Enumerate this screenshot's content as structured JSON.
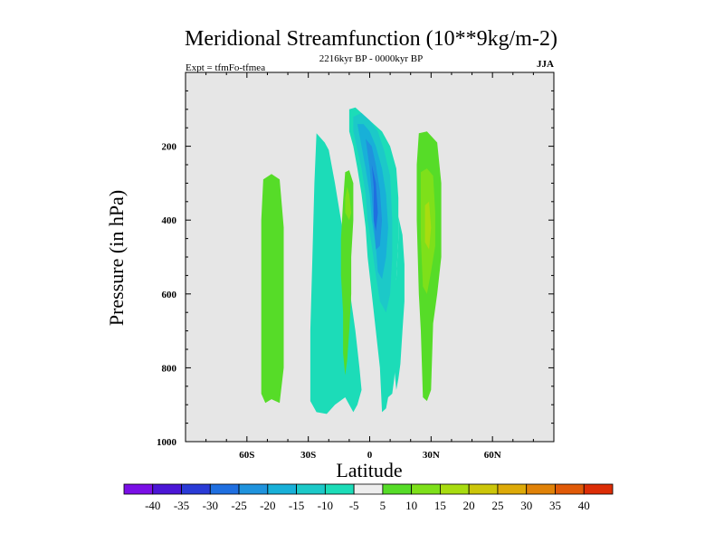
{
  "chart_data": {
    "type": "contour",
    "title": "Meridional Streamfunction (10**9kg/m-2)",
    "subtitle_left": "Expt = tfmFo-tfmea",
    "subtitle_center": "2216kyr BP - 0000kyr BP",
    "subtitle_right": "JJA",
    "xlabel": "Latitude",
    "ylabel": "Pressure (in hPa)",
    "xlim": [
      -90,
      90
    ],
    "ylim": [
      1000,
      0
    ],
    "x_ticks": [
      {
        "value": -60,
        "label": "60S"
      },
      {
        "value": -30,
        "label": "30S"
      },
      {
        "value": 0,
        "label": "0"
      },
      {
        "value": 30,
        "label": "30N"
      },
      {
        "value": 60,
        "label": "60N"
      }
    ],
    "y_ticks": [
      {
        "value": 200,
        "label": "200"
      },
      {
        "value": 400,
        "label": "400"
      },
      {
        "value": 600,
        "label": "600"
      },
      {
        "value": 800,
        "label": "800"
      },
      {
        "value": 1000,
        "label": "1000"
      }
    ],
    "background_color": "#e6e6e6",
    "levels": [
      -40,
      -35,
      -30,
      -25,
      -20,
      -15,
      -10,
      -5,
      5,
      10,
      15,
      20,
      25,
      30,
      35,
      40
    ],
    "level_labels": [
      "-40",
      "-35",
      "-30",
      "-25",
      "-20",
      "-15",
      "-10",
      "-5",
      "5",
      "10",
      "15",
      "20",
      "25",
      "30",
      "35",
      "40"
    ],
    "colors": [
      "#7a0fe6",
      "#4b16d6",
      "#2a3bd6",
      "#1f6fe0",
      "#1f93dd",
      "#18b0d8",
      "#1cc9c8",
      "#1cdcb8",
      "#eeeeee",
      "#56dc28",
      "#7ee01a",
      "#a8dc10",
      "#ccc60a",
      "#ddaa08",
      "#e08208",
      "#e05a08",
      "#dc2d06"
    ],
    "regions": [
      {
        "label": "band-60S-positive",
        "value": 7.5,
        "outline": [
          [
            -52,
            290
          ],
          [
            -48,
            275
          ],
          [
            -44,
            290
          ],
          [
            -42,
            420
          ],
          [
            -42,
            600
          ],
          [
            -42,
            800
          ],
          [
            -44,
            895
          ],
          [
            -48,
            885
          ],
          [
            -51,
            895
          ],
          [
            -53,
            870
          ],
          [
            -53,
            600
          ],
          [
            -53,
            400
          ]
        ]
      },
      {
        "value": -7.5,
        "outline": [
          [
            -26,
            165
          ],
          [
            -22,
            190
          ],
          [
            -20,
            210
          ],
          [
            -17,
            300
          ],
          [
            -14,
            400
          ],
          [
            -11,
            500
          ],
          [
            -9,
            620
          ],
          [
            -7,
            700
          ],
          [
            -5,
            800
          ],
          [
            -4,
            860
          ],
          [
            -6,
            900
          ],
          [
            -8,
            920
          ],
          [
            -12,
            880
          ],
          [
            -17,
            900
          ],
          [
            -21,
            925
          ],
          [
            -26,
            920
          ],
          [
            -29,
            890
          ],
          [
            -29,
            700
          ],
          [
            -28,
            500
          ],
          [
            -27,
            300
          ]
        ]
      },
      {
        "value": -7.5,
        "outline": [
          [
            -10,
            100
          ],
          [
            -7,
            95
          ],
          [
            -3,
            115
          ],
          [
            2,
            140
          ],
          [
            6,
            160
          ],
          [
            10,
            200
          ],
          [
            13,
            260
          ],
          [
            14,
            340
          ],
          [
            14,
            450
          ],
          [
            13,
            560
          ],
          [
            14,
            640
          ],
          [
            13,
            760
          ],
          [
            12,
            830
          ],
          [
            11,
            870
          ],
          [
            9,
            880
          ],
          [
            8,
            910
          ],
          [
            6,
            920
          ],
          [
            5,
            800
          ],
          [
            3,
            700
          ],
          [
            1,
            600
          ],
          [
            -1,
            500
          ],
          [
            -2,
            420
          ],
          [
            -4,
            330
          ],
          [
            -6,
            260
          ],
          [
            -8,
            200
          ],
          [
            -10,
            160
          ]
        ]
      },
      {
        "value": -7.5,
        "outline": [
          [
            14,
            390
          ],
          [
            16,
            440
          ],
          [
            17,
            520
          ],
          [
            17,
            620
          ],
          [
            16,
            700
          ],
          [
            15,
            790
          ],
          [
            14,
            830
          ],
          [
            13,
            860
          ],
          [
            12,
            800
          ],
          [
            13,
            700
          ],
          [
            13,
            560
          ],
          [
            14,
            450
          ]
        ]
      },
      {
        "value": -12.5,
        "outline": [
          [
            -8,
            120
          ],
          [
            -4,
            110
          ],
          [
            0,
            130
          ],
          [
            4,
            160
          ],
          [
            7,
            210
          ],
          [
            10,
            280
          ],
          [
            11,
            400
          ],
          [
            11,
            500
          ],
          [
            10,
            600
          ],
          [
            8,
            650
          ],
          [
            5,
            620
          ],
          [
            3,
            550
          ],
          [
            1,
            470
          ],
          [
            -1,
            400
          ],
          [
            -2,
            330
          ],
          [
            -4,
            260
          ],
          [
            -6,
            210
          ],
          [
            -8,
            160
          ]
        ]
      },
      {
        "value": -17.5,
        "outline": [
          [
            -6,
            140
          ],
          [
            -3,
            140
          ],
          [
            0,
            160
          ],
          [
            3,
            200
          ],
          [
            6,
            260
          ],
          [
            8,
            330
          ],
          [
            9,
            420
          ],
          [
            8,
            500
          ],
          [
            6,
            560
          ],
          [
            4,
            540
          ],
          [
            3,
            470
          ],
          [
            1,
            400
          ],
          [
            0,
            330
          ],
          [
            -2,
            260
          ],
          [
            -4,
            200
          ]
        ]
      },
      {
        "value": -22.5,
        "outline": [
          [
            -2,
            180
          ],
          [
            1,
            200
          ],
          [
            3,
            250
          ],
          [
            5,
            320
          ],
          [
            6,
            400
          ],
          [
            5,
            470
          ],
          [
            3,
            480
          ],
          [
            2,
            410
          ],
          [
            1,
            330
          ],
          [
            0,
            260
          ]
        ]
      },
      {
        "value": -27.5,
        "outline": [
          [
            1,
            250
          ],
          [
            3,
            300
          ],
          [
            4,
            380
          ],
          [
            3,
            430
          ],
          [
            2,
            400
          ],
          [
            2,
            310
          ]
        ]
      },
      {
        "value": 7.5,
        "outline": [
          [
            -12,
            270
          ],
          [
            -10,
            265
          ],
          [
            -8,
            300
          ],
          [
            -8,
            400
          ],
          [
            -9,
            500
          ],
          [
            -9,
            600
          ],
          [
            -10,
            700
          ],
          [
            -11,
            780
          ],
          [
            -12,
            820
          ],
          [
            -13,
            760
          ],
          [
            -13,
            650
          ],
          [
            -14,
            550
          ],
          [
            -14,
            450
          ],
          [
            -13,
            350
          ]
        ]
      },
      {
        "value": 12.5,
        "outline": [
          [
            -11,
            310
          ],
          [
            -10,
            330
          ],
          [
            -9,
            380
          ],
          [
            -10,
            400
          ],
          [
            -12,
            380
          ],
          [
            -12,
            340
          ]
        ]
      },
      {
        "value": 7.5,
        "outline": [
          [
            24,
            165
          ],
          [
            28,
            160
          ],
          [
            33,
            190
          ],
          [
            35,
            300
          ],
          [
            35,
            500
          ],
          [
            33,
            600
          ],
          [
            31,
            680
          ],
          [
            30,
            860
          ],
          [
            28,
            890
          ],
          [
            26,
            880
          ],
          [
            25,
            700
          ],
          [
            24,
            600
          ],
          [
            23,
            400
          ],
          [
            23,
            250
          ]
        ]
      },
      {
        "value": 12.5,
        "outline": [
          [
            25,
            270
          ],
          [
            28,
            260
          ],
          [
            31,
            280
          ],
          [
            32,
            380
          ],
          [
            32,
            470
          ],
          [
            30,
            540
          ],
          [
            28,
            600
          ],
          [
            26,
            580
          ],
          [
            25,
            450
          ],
          [
            25,
            350
          ]
        ]
      },
      {
        "value": 17.5,
        "outline": [
          [
            27,
            360
          ],
          [
            29,
            350
          ],
          [
            30,
            420
          ],
          [
            29,
            480
          ],
          [
            27,
            460
          ]
        ]
      }
    ]
  }
}
